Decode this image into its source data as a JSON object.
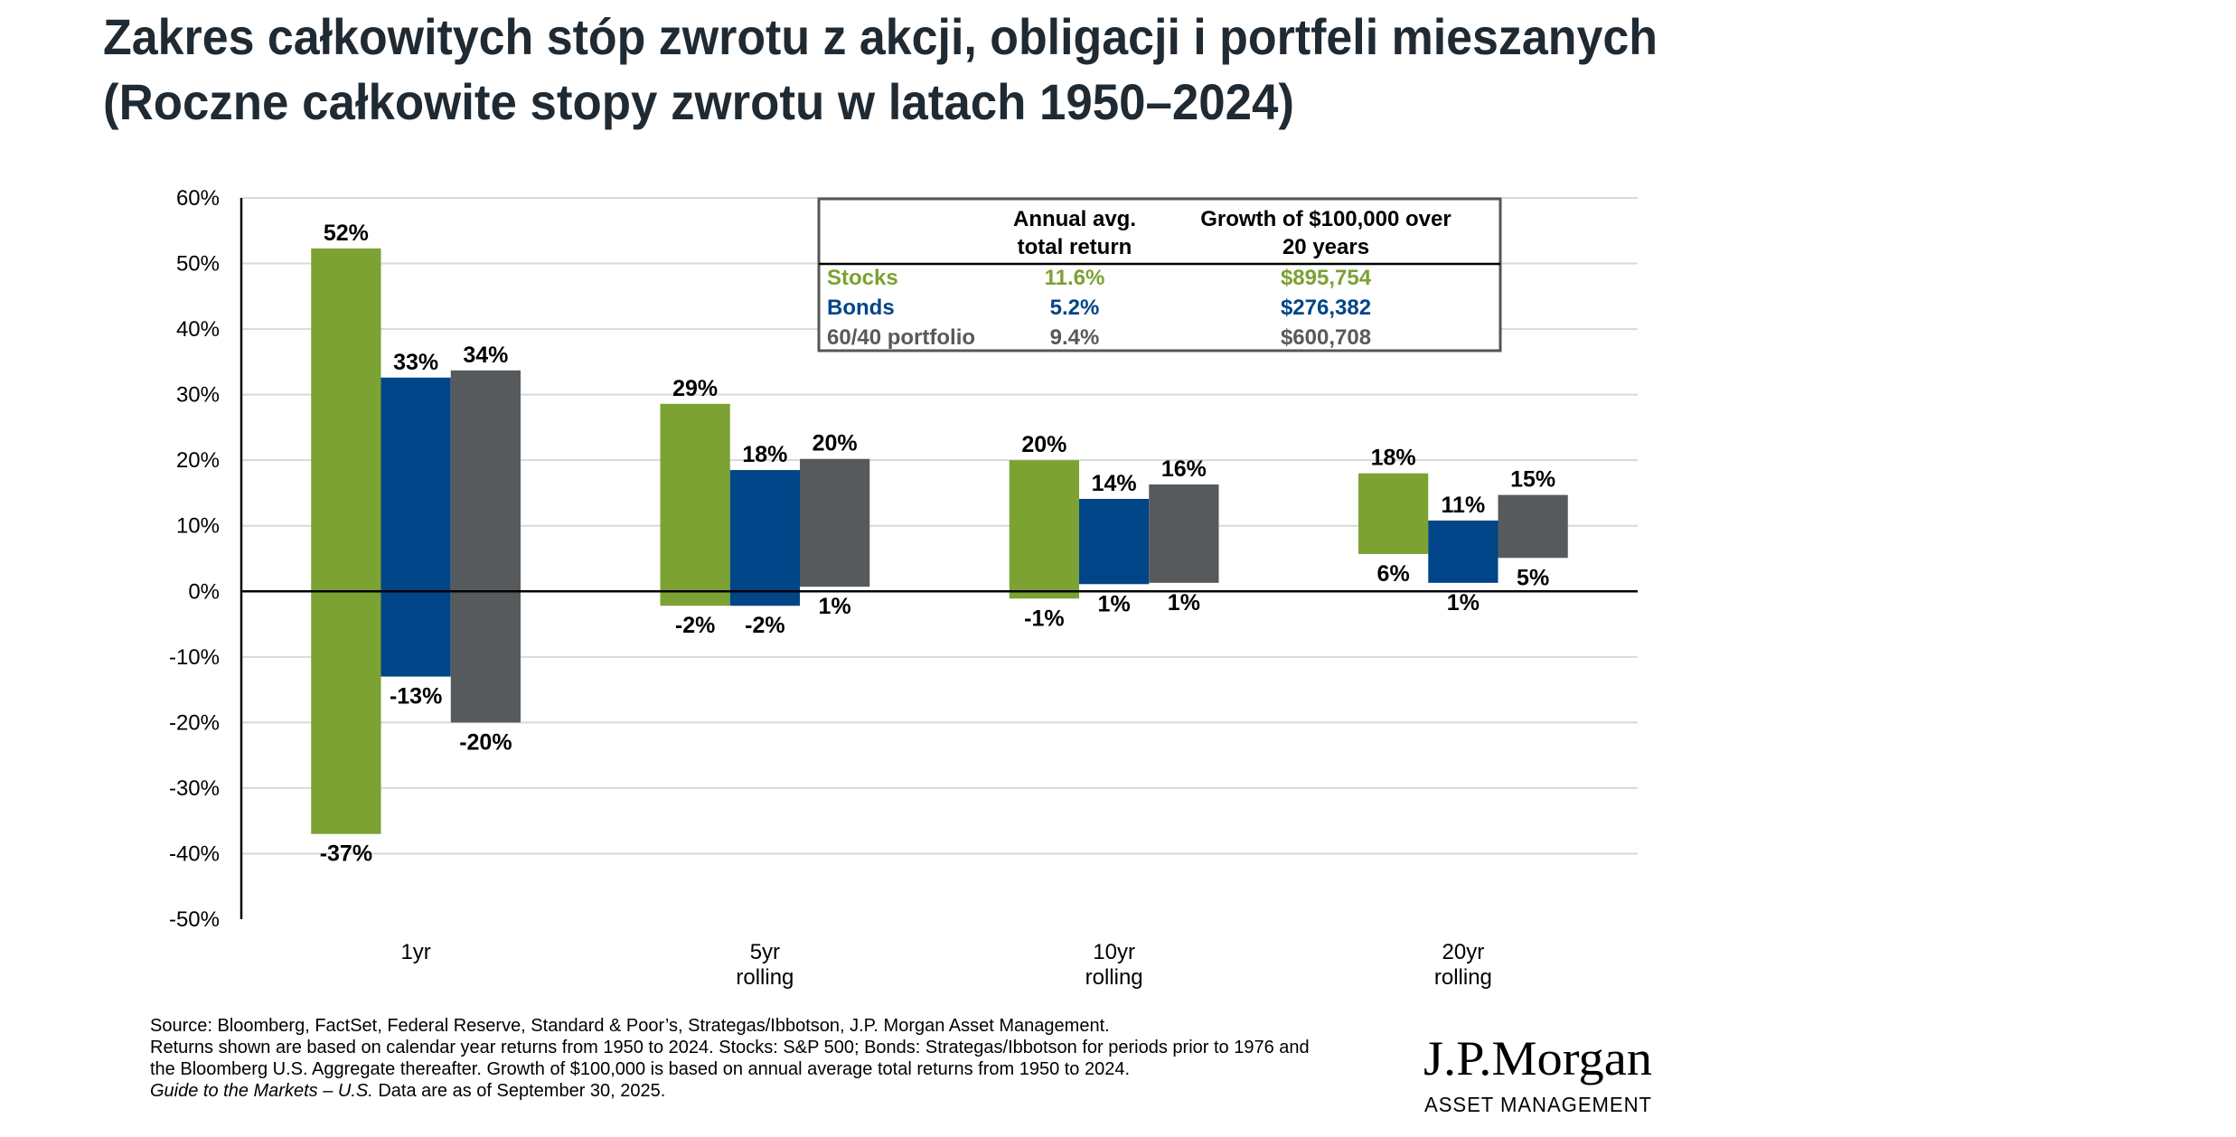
{
  "chart_data": {
    "type": "bar",
    "subtype": "floating-range",
    "title": "Zakres całkowitych stóp zwrotu z akcji, obligacji i portfeli mieszanych",
    "subtitle": "(Roczne całkowite stopy zwrotu w latach 1950–2024)",
    "categories": [
      [
        "1yr"
      ],
      [
        "5yr",
        "rolling"
      ],
      [
        "10yr",
        "rolling"
      ],
      [
        "20yr",
        "rolling"
      ]
    ],
    "ylim": [
      -50,
      60
    ],
    "yticks": [
      "60%",
      "50%",
      "40%",
      "30%",
      "20%",
      "10%",
      "0%",
      "-10%",
      "-20%",
      "-30%",
      "-40%",
      "-50%"
    ],
    "ytick_values": [
      60,
      50,
      40,
      30,
      20,
      10,
      0,
      -10,
      -20,
      -30,
      -40,
      -50
    ],
    "grid": true,
    "series": [
      {
        "color": "#7ba232",
        "max": [
          52.3,
          28.6,
          20.0,
          18.0
        ],
        "min": [
          -37.0,
          -2.2,
          -1.1,
          5.7
        ],
        "max_labels": [
          "52%",
          "29%",
          "20%",
          "18%"
        ],
        "min_labels": [
          "-37%",
          "-2%",
          "-1%",
          "6%"
        ]
      },
      {
        "color": "#004587",
        "max": [
          32.6,
          18.5,
          14.1,
          10.8
        ],
        "min": [
          -13.0,
          -2.2,
          1.1,
          1.3
        ],
        "max_labels": [
          "33%",
          "18%",
          "14%",
          "11%"
        ],
        "min_labels": [
          "-13%",
          "-2%",
          "1%",
          "1%"
        ]
      },
      {
        "color": "#575a5d",
        "max": [
          33.7,
          20.2,
          16.3,
          14.7
        ],
        "min": [
          -20.0,
          0.7,
          1.3,
          5.1
        ],
        "max_labels": [
          "34%",
          "20%",
          "16%",
          "15%"
        ],
        "min_labels": [
          "-20%",
          "1%",
          "1%",
          "5%"
        ]
      }
    ]
  },
  "table": {
    "headers": [
      [
        "Annual avg.",
        "total return"
      ],
      [
        "Growth of $100,000 over",
        "20 years"
      ]
    ],
    "rows": [
      {
        "label": "Stocks",
        "avg": "11.6%",
        "growth": "$895,754",
        "color": "#7ba232"
      },
      {
        "label": "Bonds",
        "avg": "5.2%",
        "growth": "$276,382",
        "color": "#004587"
      },
      {
        "label": "60/40 portfolio",
        "avg": "9.4%",
        "growth": "$600,708",
        "color": "#575a5d"
      }
    ]
  },
  "footer": {
    "lines": [
      "Source: Bloomberg, FactSet, Federal Reserve, Standard & Poor’s, Strategas/Ibbotson, J.P. Morgan Asset Management.",
      "Returns shown are based on calendar year returns from 1950 to 2024. Stocks: S&P 500; Bonds: Strategas/Ibbotson for periods prior to 1976 and",
      "the Bloomberg U.S. Aggregate thereafter. Growth of $100,000 is based on annual average total returns from 1950 to 2024."
    ],
    "last_italic": "Guide to the Markets – U.S.",
    "last_rest": " Data are as of September 30, 2025."
  },
  "logo": {
    "name": "J.P.Morgan",
    "sub": "ASSET MANAGEMENT"
  }
}
